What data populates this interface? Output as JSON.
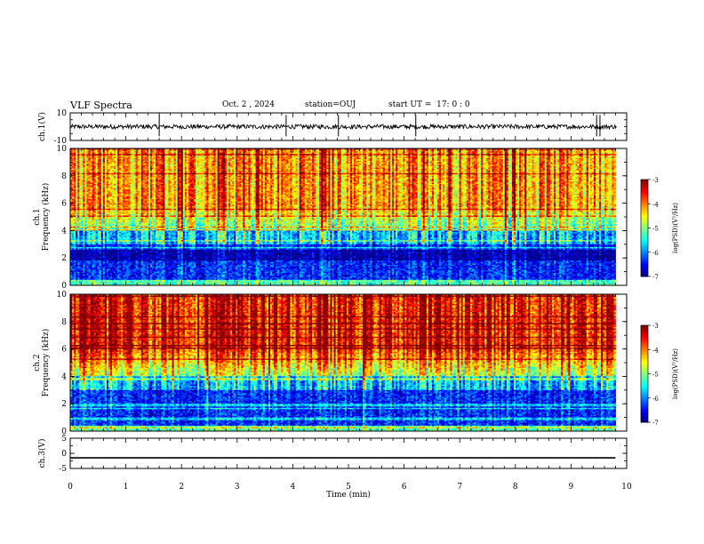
{
  "header": {
    "title": "VLF Spectra",
    "date": "Oct. 2 , 2024",
    "station": "station=OUJ",
    "start": "start UT =  17: 0 : 0"
  },
  "chart_data": [
    {
      "type": "line",
      "panel": "ch1-waveform",
      "ylabel": "ch.1(V)",
      "ylim": [
        -10,
        10
      ],
      "yticks": [
        "10",
        "-10"
      ],
      "baseline": 0,
      "spikes": [
        1.6,
        3.88,
        4.82,
        6.21,
        9.46,
        9.52
      ]
    },
    {
      "type": "heatmap",
      "panel": "ch1-spectrogram",
      "ylabel": "ch.1\nFrequency (kHz)",
      "ylim": [
        0,
        10
      ],
      "yticks": [
        "0",
        "2",
        "4",
        "6",
        "8",
        "10"
      ],
      "xlim": [
        0,
        9.8
      ],
      "colorbar": {
        "label": "log(PSD)(V²/Hz)",
        "min": -7,
        "max": -3,
        "ticks": [
          "-3",
          "-4",
          "-5",
          "-6",
          "-7"
        ]
      }
    },
    {
      "type": "heatmap",
      "panel": "ch2-spectrogram",
      "ylabel": "ch.2\nFrequency (kHz)",
      "ylim": [
        0,
        10
      ],
      "yticks": [
        "0",
        "2",
        "4",
        "6",
        "8",
        "10"
      ],
      "xlim": [
        0,
        9.8
      ],
      "colorbar": {
        "label": "log(PSD)(V²/Hz)",
        "min": -7,
        "max": -3,
        "ticks": [
          "-3",
          "-4",
          "-5",
          "-6",
          "-7"
        ]
      }
    },
    {
      "type": "line",
      "panel": "ch3-waveform",
      "ylabel": "ch.3(V)",
      "ylim": [
        -5,
        5
      ],
      "yticks": [
        "5",
        "0",
        "-5"
      ],
      "values": {
        "x": [
          0,
          9.8
        ],
        "y": [
          -1.5,
          -1.5
        ]
      }
    }
  ],
  "xaxis": {
    "label": "Time (min)",
    "range": [
      0,
      10
    ],
    "ticks": [
      "0",
      "1",
      "2",
      "3",
      "4",
      "5",
      "6",
      "7",
      "8",
      "9",
      "10"
    ]
  }
}
